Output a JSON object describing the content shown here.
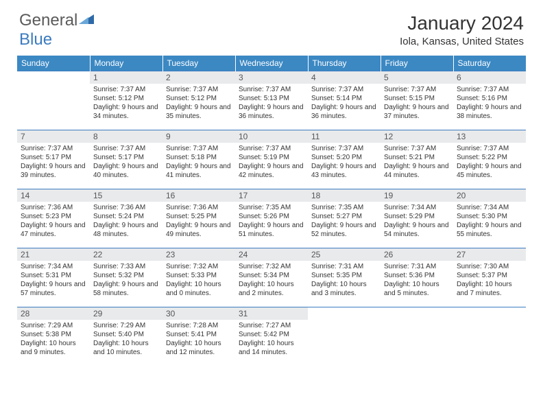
{
  "logo": {
    "text1": "General",
    "text2": "Blue",
    "icon_color": "#2e6aa8"
  },
  "header": {
    "month_title": "January 2024",
    "location": "Iola, Kansas, United States"
  },
  "colors": {
    "header_bg": "#3b88c3",
    "header_text": "#ffffff",
    "daynum_bg": "#e8eaec",
    "border": "#3b7bbf"
  },
  "weekdays": [
    "Sunday",
    "Monday",
    "Tuesday",
    "Wednesday",
    "Thursday",
    "Friday",
    "Saturday"
  ],
  "weeks": [
    [
      null,
      {
        "n": "1",
        "sr": "7:37 AM",
        "ss": "5:12 PM",
        "dl": "9 hours and 34 minutes."
      },
      {
        "n": "2",
        "sr": "7:37 AM",
        "ss": "5:12 PM",
        "dl": "9 hours and 35 minutes."
      },
      {
        "n": "3",
        "sr": "7:37 AM",
        "ss": "5:13 PM",
        "dl": "9 hours and 36 minutes."
      },
      {
        "n": "4",
        "sr": "7:37 AM",
        "ss": "5:14 PM",
        "dl": "9 hours and 36 minutes."
      },
      {
        "n": "5",
        "sr": "7:37 AM",
        "ss": "5:15 PM",
        "dl": "9 hours and 37 minutes."
      },
      {
        "n": "6",
        "sr": "7:37 AM",
        "ss": "5:16 PM",
        "dl": "9 hours and 38 minutes."
      }
    ],
    [
      {
        "n": "7",
        "sr": "7:37 AM",
        "ss": "5:17 PM",
        "dl": "9 hours and 39 minutes."
      },
      {
        "n": "8",
        "sr": "7:37 AM",
        "ss": "5:17 PM",
        "dl": "9 hours and 40 minutes."
      },
      {
        "n": "9",
        "sr": "7:37 AM",
        "ss": "5:18 PM",
        "dl": "9 hours and 41 minutes."
      },
      {
        "n": "10",
        "sr": "7:37 AM",
        "ss": "5:19 PM",
        "dl": "9 hours and 42 minutes."
      },
      {
        "n": "11",
        "sr": "7:37 AM",
        "ss": "5:20 PM",
        "dl": "9 hours and 43 minutes."
      },
      {
        "n": "12",
        "sr": "7:37 AM",
        "ss": "5:21 PM",
        "dl": "9 hours and 44 minutes."
      },
      {
        "n": "13",
        "sr": "7:37 AM",
        "ss": "5:22 PM",
        "dl": "9 hours and 45 minutes."
      }
    ],
    [
      {
        "n": "14",
        "sr": "7:36 AM",
        "ss": "5:23 PM",
        "dl": "9 hours and 47 minutes."
      },
      {
        "n": "15",
        "sr": "7:36 AM",
        "ss": "5:24 PM",
        "dl": "9 hours and 48 minutes."
      },
      {
        "n": "16",
        "sr": "7:36 AM",
        "ss": "5:25 PM",
        "dl": "9 hours and 49 minutes."
      },
      {
        "n": "17",
        "sr": "7:35 AM",
        "ss": "5:26 PM",
        "dl": "9 hours and 51 minutes."
      },
      {
        "n": "18",
        "sr": "7:35 AM",
        "ss": "5:27 PM",
        "dl": "9 hours and 52 minutes."
      },
      {
        "n": "19",
        "sr": "7:34 AM",
        "ss": "5:29 PM",
        "dl": "9 hours and 54 minutes."
      },
      {
        "n": "20",
        "sr": "7:34 AM",
        "ss": "5:30 PM",
        "dl": "9 hours and 55 minutes."
      }
    ],
    [
      {
        "n": "21",
        "sr": "7:34 AM",
        "ss": "5:31 PM",
        "dl": "9 hours and 57 minutes."
      },
      {
        "n": "22",
        "sr": "7:33 AM",
        "ss": "5:32 PM",
        "dl": "9 hours and 58 minutes."
      },
      {
        "n": "23",
        "sr": "7:32 AM",
        "ss": "5:33 PM",
        "dl": "10 hours and 0 minutes."
      },
      {
        "n": "24",
        "sr": "7:32 AM",
        "ss": "5:34 PM",
        "dl": "10 hours and 2 minutes."
      },
      {
        "n": "25",
        "sr": "7:31 AM",
        "ss": "5:35 PM",
        "dl": "10 hours and 3 minutes."
      },
      {
        "n": "26",
        "sr": "7:31 AM",
        "ss": "5:36 PM",
        "dl": "10 hours and 5 minutes."
      },
      {
        "n": "27",
        "sr": "7:30 AM",
        "ss": "5:37 PM",
        "dl": "10 hours and 7 minutes."
      }
    ],
    [
      {
        "n": "28",
        "sr": "7:29 AM",
        "ss": "5:38 PM",
        "dl": "10 hours and 9 minutes."
      },
      {
        "n": "29",
        "sr": "7:29 AM",
        "ss": "5:40 PM",
        "dl": "10 hours and 10 minutes."
      },
      {
        "n": "30",
        "sr": "7:28 AM",
        "ss": "5:41 PM",
        "dl": "10 hours and 12 minutes."
      },
      {
        "n": "31",
        "sr": "7:27 AM",
        "ss": "5:42 PM",
        "dl": "10 hours and 14 minutes."
      },
      null,
      null,
      null
    ]
  ],
  "labels": {
    "sunrise": "Sunrise: ",
    "sunset": "Sunset: ",
    "daylight": "Daylight: "
  }
}
